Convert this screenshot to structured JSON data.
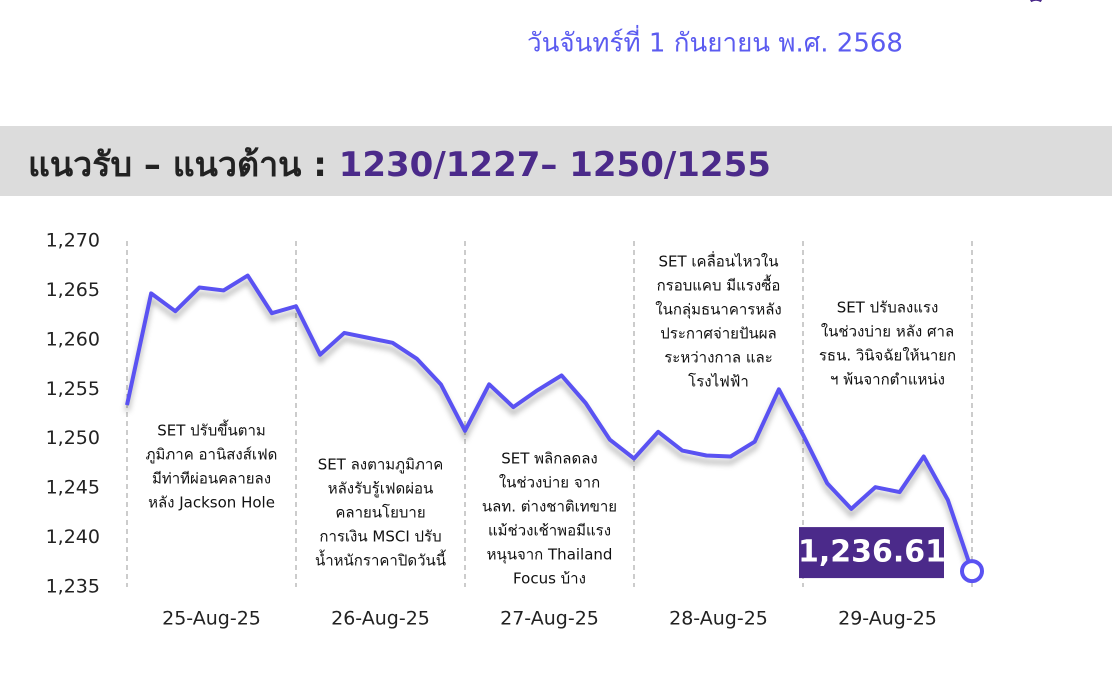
{
  "header": {
    "date": "วันจันทร์ที่ 1 กันยายน พ.ศ. 2568",
    "label": "แนวรับ – แนวต้าน : ",
    "levels": "1230/1227– 1250/1255"
  },
  "chart_data": {
    "type": "line",
    "x": [
      0,
      1,
      2,
      3,
      4,
      5,
      6,
      7,
      8,
      9,
      10,
      11,
      12,
      13,
      14,
      15,
      16,
      17,
      18,
      19,
      20,
      21,
      22,
      23,
      24,
      25,
      26,
      27,
      28,
      29,
      30,
      31,
      32,
      33,
      34,
      35
    ],
    "xlim": [
      0,
      35
    ],
    "day_labels": [
      "25-Aug-25",
      "26-Aug-25",
      "27-Aug-25",
      "28-Aug-25",
      "29-Aug-25"
    ],
    "series": [
      {
        "name": "SET",
        "color": "#5a52f2",
        "values": [
          1253.4,
          1264.7,
          1262.9,
          1265.3,
          1265.0,
          1266.5,
          1262.7,
          1263.4,
          1258.5,
          1260.7,
          1260.2,
          1259.7,
          1258.1,
          1255.5,
          1250.8,
          1255.5,
          1253.2,
          1254.9,
          1256.4,
          1253.6,
          1249.9,
          1248.0,
          1250.7,
          1248.8,
          1248.3,
          1248.2,
          1249.7,
          1255.0,
          1250.4,
          1245.5,
          1242.9,
          1245.1,
          1244.6,
          1248.2,
          1243.8,
          1236.61
        ],
        "value_labels": [
          null,
          null,
          null,
          null,
          null,
          null,
          null,
          null,
          null,
          null,
          null,
          null,
          null,
          null,
          null,
          null,
          null,
          null,
          null,
          null,
          null,
          null,
          null,
          null,
          null,
          null,
          null,
          null,
          null,
          null,
          null,
          null,
          null,
          null,
          null,
          "1,236.61"
        ]
      }
    ],
    "ylim": [
      1235,
      1270
    ],
    "yticks": [
      {
        "value": 1235,
        "label": "1,235"
      },
      {
        "value": 1240,
        "label": "1,240"
      },
      {
        "value": 1245,
        "label": "1,245"
      },
      {
        "value": 1250,
        "label": "1,250"
      },
      {
        "value": 1255,
        "label": "1,255"
      },
      {
        "value": 1260,
        "label": "1,260"
      },
      {
        "value": 1265,
        "label": "1,265"
      },
      {
        "value": 1270,
        "label": "1,270"
      }
    ],
    "annotations": [
      [
        "SET ปรับขึ้นตาม",
        "ภูมิภาค อานิสงส์เฟด",
        "มีท่าทีผ่อนคลายลง",
        "หลัง Jackson Hole"
      ],
      [
        "SET ลงตามภูมิภาค",
        "หลังรับรู้เฟดผ่อน",
        "คลายนโยบาย",
        "การเงิน MSCI ปรับ",
        "น้ำหนักราคาปิดวันนี้"
      ],
      [
        "SET พลิกลดลง",
        "ในช่วงบ่าย จาก",
        "นลท. ต่างชาติเทขาย",
        "แม้ช่วงเช้าพอมีแรง",
        "หนุนจาก Thailand",
        "Focus บ้าง"
      ],
      [
        "SET เคลื่อนไหวใน",
        "กรอบแคบ มีแรงซื้อ",
        "ในกลุ่มธนาคารหลัง",
        "ประกาศจ่ายปันผล",
        "ระหว่างกาล และ",
        "โรงไฟฟ้า"
      ],
      [
        "SET ปรับลงแรง",
        "ในช่วงบ่าย หลัง ศาล",
        "รธน. วินิจฉัยให้นายก",
        "ฯ พ้นจากตำแหน่ง"
      ]
    ]
  }
}
